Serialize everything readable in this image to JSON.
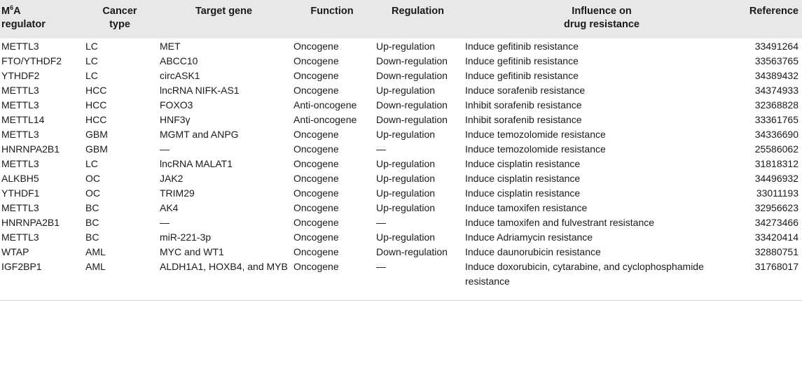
{
  "header": {
    "regulator_prefix": "M",
    "regulator_sup": "6",
    "regulator_main": "A",
    "regulator_line2": "regulator",
    "cancer_line1": "Cancer",
    "cancer_line2": "type",
    "target": "Target gene",
    "function": "Function",
    "regulation": "Regulation",
    "influence_line1": "Influence on",
    "influence_line2": "drug resistance",
    "reference": "Reference"
  },
  "rows": [
    {
      "regulator": "METTL3",
      "cancer": "LC",
      "target": "MET",
      "function": "Oncogene",
      "regulation": "Up-regulation",
      "influence": "Induce gefitinib resistance",
      "reference": "33491264"
    },
    {
      "regulator": "FTO/YTHDF2",
      "cancer": "LC",
      "target": "ABCC10",
      "function": "Oncogene",
      "regulation": "Down-regulation",
      "influence": "Induce gefitinib resistance",
      "reference": "33563765"
    },
    {
      "regulator": "YTHDF2",
      "cancer": "LC",
      "target": "circASK1",
      "function": "Oncogene",
      "regulation": "Down-regulation",
      "influence": "Induce gefitinib resistance",
      "reference": "34389432"
    },
    {
      "regulator": "METTL3",
      "cancer": "HCC",
      "target": "lncRNA NIFK-AS1",
      "function": "Oncogene",
      "regulation": "Up-regulation",
      "influence": "Induce sorafenib resistance",
      "reference": "34374933"
    },
    {
      "regulator": "METTL3",
      "cancer": "HCC",
      "target": "FOXO3",
      "function": "Anti-oncogene",
      "regulation": "Down-regulation",
      "influence": "Inhibit sorafenib resistance",
      "reference": "32368828"
    },
    {
      "regulator": "METTL14",
      "cancer": "HCC",
      "target": "HNF3γ",
      "function": "Anti-oncogene",
      "regulation": "Down-regulation",
      "influence": "Inhibit sorafenib resistance",
      "reference": "33361765"
    },
    {
      "regulator": "METTL3",
      "cancer": "GBM",
      "target": "MGMT and ANPG",
      "function": "Oncogene",
      "regulation": "Up-regulation",
      "influence": "Induce temozolomide resistance",
      "reference": "34336690"
    },
    {
      "regulator": "HNRNPA2B1",
      "cancer": "GBM",
      "target": "—",
      "function": "Oncogene",
      "regulation": "—",
      "influence": "Induce temozolomide resistance",
      "reference": "25586062"
    },
    {
      "regulator": "METTL3",
      "cancer": "LC",
      "target": "lncRNA MALAT1",
      "function": "Oncogene",
      "regulation": "Up-regulation",
      "influence": "Induce cisplatin resistance",
      "reference": "31818312"
    },
    {
      "regulator": "ALKBH5",
      "cancer": "OC",
      "target": "JAK2",
      "function": "Oncogene",
      "regulation": "Up-regulation",
      "influence": "Induce cisplatin resistance",
      "reference": "34496932"
    },
    {
      "regulator": "YTHDF1",
      "cancer": "OC",
      "target": "TRIM29",
      "function": "Oncogene",
      "regulation": "Up-regulation",
      "influence": "Induce cisplatin resistance",
      "reference": "33011193"
    },
    {
      "regulator": "METTL3",
      "cancer": "BC",
      "target": "AK4",
      "function": "Oncogene",
      "regulation": "Up-regulation",
      "influence": "Induce tamoxifen resistance",
      "reference": "32956623"
    },
    {
      "regulator": "HNRNPA2B1",
      "cancer": "BC",
      "target": "—",
      "function": "Oncogene",
      "regulation": "—",
      "influence": "Induce tamoxifen and fulvestrant resistance",
      "reference": "34273466"
    },
    {
      "regulator": "METTL3",
      "cancer": "BC",
      "target": "miR-221-3p",
      "function": "Oncogene",
      "regulation": "Up-regulation",
      "influence": "Induce Adriamycin resistance",
      "reference": "33420414"
    },
    {
      "regulator": "WTAP",
      "cancer": "AML",
      "target": "MYC and WT1",
      "function": "Oncogene",
      "regulation": "Down-regulation",
      "influence": "Induce daunorubicin resistance",
      "reference": "32880751"
    },
    {
      "regulator": "IGF2BP1",
      "cancer": "AML",
      "target": "ALDH1A1, HOXB4, and MYB",
      "function": "Oncogene",
      "regulation": "—",
      "influence": "Induce doxorubicin, cytarabine, and cyclophosphamide resistance",
      "reference": "31768017"
    }
  ]
}
